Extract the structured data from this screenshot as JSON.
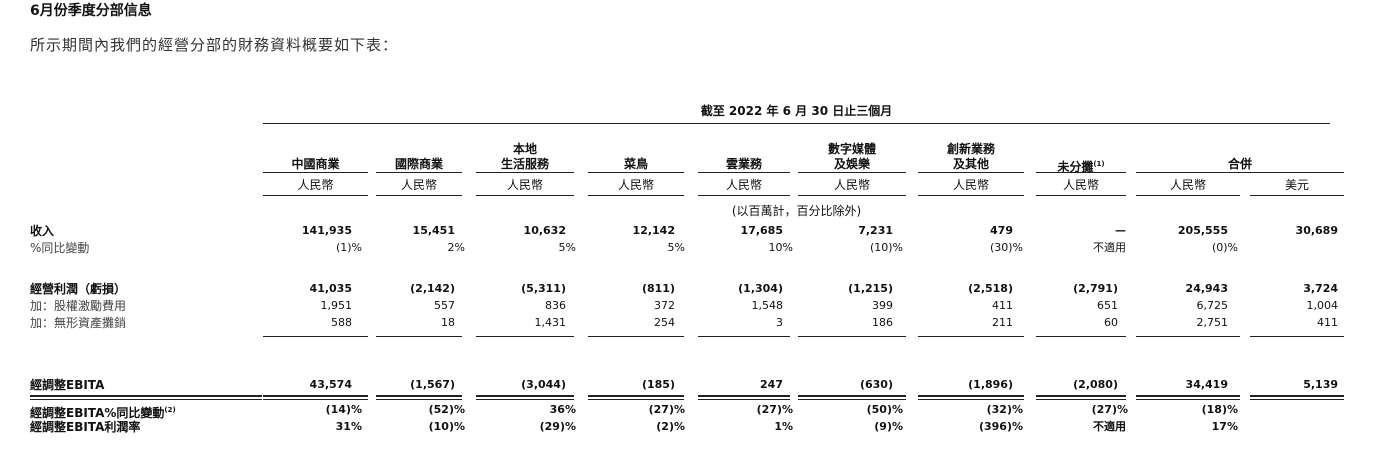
{
  "header": {
    "title": "6月份季度分部信息",
    "subtitle": "所示期間內我們的經營分部的財務資料概要如下表："
  },
  "table": {
    "period": "截至 2022 年 6 月 30 日止三個月",
    "columns": [
      {
        "lines": [
          "中國商業"
        ]
      },
      {
        "lines": [
          "國際商業"
        ]
      },
      {
        "lines": [
          "本地",
          "生活服務"
        ]
      },
      {
        "lines": [
          "菜鳥"
        ]
      },
      {
        "lines": [
          "雲業務"
        ]
      },
      {
        "lines": [
          "數字媒體",
          "及娛樂"
        ]
      },
      {
        "lines": [
          "創新業務",
          "及其他"
        ]
      },
      {
        "lines": [
          "未分攤"
        ],
        "sup": "(1)"
      },
      {
        "lines": [
          "合併"
        ]
      }
    ],
    "currencies": [
      "人民幣",
      "人民幣",
      "人民幣",
      "人民幣",
      "人民幣",
      "人民幣",
      "人民幣",
      "人民幣",
      "人民幣",
      "美元"
    ],
    "unit_note": "(以百萬計，百分比除外)",
    "rows": [
      {
        "label": "收入",
        "cells": [
          "141,935",
          "15,451",
          "10,632",
          "12,142",
          "17,685",
          "7,231",
          "479",
          "—",
          "205,555",
          "30,689"
        ]
      },
      {
        "label": "%同比變動",
        "cells": [
          "(1)%",
          "2%",
          "5%",
          "5%",
          "10%",
          "(10)%",
          "(30)%",
          "不適用",
          "(0)%",
          null
        ]
      },
      {
        "label": "經營利潤（虧損）",
        "cells": [
          "41,035",
          "(2,142)",
          "(5,311)",
          "(811)",
          "(1,304)",
          "(1,215)",
          "(2,518)",
          "(2,791)",
          "24,943",
          "3,724"
        ]
      },
      {
        "label": "加：股權激勵費用",
        "cells": [
          "1,951",
          "557",
          "836",
          "372",
          "1,548",
          "399",
          "411",
          "651",
          "6,725",
          "1,004"
        ]
      },
      {
        "label": "加：無形資產攤銷",
        "cells": [
          "588",
          "18",
          "1,431",
          "254",
          "3",
          "186",
          "211",
          "60",
          "2,751",
          "411"
        ]
      },
      {
        "label": "經調整EBITA",
        "cells": [
          "43,574",
          "(1,567)",
          "(3,044)",
          "(185)",
          "247",
          "(630)",
          "(1,896)",
          "(2,080)",
          "34,419",
          "5,139"
        ]
      },
      {
        "label": "經調整EBITA%同比變動",
        "sup": "(2)",
        "cells": [
          "(14)%",
          "(52)%",
          "36%",
          "(27)%",
          "(27)%",
          "(50)%",
          "(32)%",
          "(27)%",
          "(18)%",
          null
        ]
      },
      {
        "label": "經調整EBITA利潤率",
        "cells": [
          "31%",
          "(10)%",
          "(29)%",
          "(2)%",
          "1%",
          "(9)%",
          "(396)%",
          "不適用",
          "17%",
          null
        ]
      }
    ]
  }
}
